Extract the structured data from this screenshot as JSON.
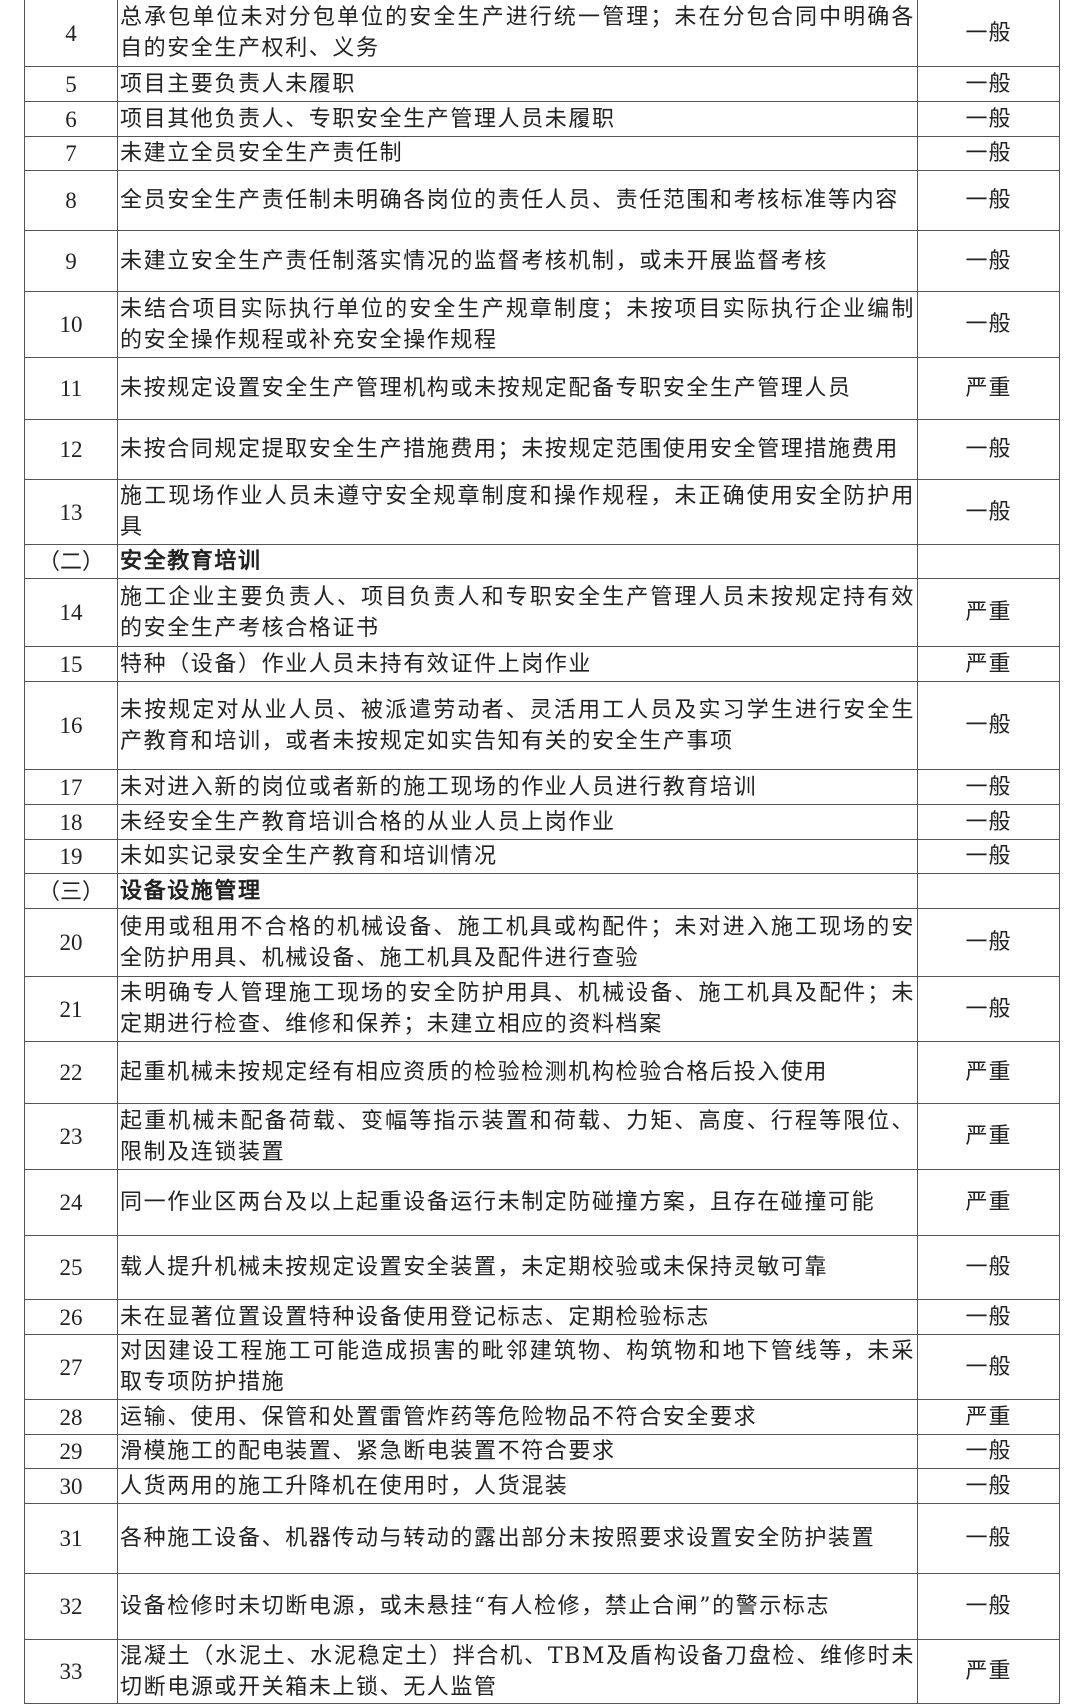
{
  "rows": [
    {
      "no": "4",
      "text": "总承包单位未对分包单位的安全生产进行统一管理；未在分包合同中明确各自的安全生产权利、义务",
      "severity": "一般"
    },
    {
      "no": "5",
      "text": "项目主要负责人未履职",
      "severity": "一般"
    },
    {
      "no": "6",
      "text": "项目其他负责人、专职安全生产管理人员未履职",
      "severity": "一般"
    },
    {
      "no": "7",
      "text": "未建立全员安全生产责任制",
      "severity": "一般"
    },
    {
      "no": "8",
      "text": "全员安全生产责任制未明确各岗位的责任人员、责任范围和考核标准等内容",
      "severity": "一般"
    },
    {
      "no": "9",
      "text": "未建立安全生产责任制落实情况的监督考核机制，或未开展监督考核",
      "severity": "一般"
    },
    {
      "no": "10",
      "text": "未结合项目实际执行单位的安全生产规章制度；未按项目实际执行企业编制的安全操作规程或补充安全操作规程",
      "severity": "一般"
    },
    {
      "no": "11",
      "text": "未按规定设置安全生产管理机构或未按规定配备专职安全生产管理人员",
      "severity": "严重"
    },
    {
      "no": "12",
      "text": "未按合同规定提取安全生产措施费用；未按规定范围使用安全管理措施费用",
      "severity": "一般"
    },
    {
      "no": "13",
      "text": "施工现场作业人员未遵守安全规章制度和操作规程，未正确使用安全防护用具",
      "severity": "一般"
    },
    {
      "section": true,
      "no": "（二）",
      "text": "安全教育培训",
      "severity": ""
    },
    {
      "no": "14",
      "text": "施工企业主要负责人、项目负责人和专职安全生产管理人员未按规定持有效的安全生产考核合格证书",
      "severity": "严重"
    },
    {
      "no": "15",
      "text": "特种（设备）作业人员未持有效证件上岗作业",
      "severity": "严重"
    },
    {
      "no": "16",
      "text": "未按规定对从业人员、被派遣劳动者、灵活用工人员及实习学生进行安全生产教育和培训，或者未按规定如实告知有关的安全生产事项",
      "severity": "一般"
    },
    {
      "no": "17",
      "text": "未对进入新的岗位或者新的施工现场的作业人员进行教育培训",
      "severity": "一般"
    },
    {
      "no": "18",
      "text": "未经安全生产教育培训合格的从业人员上岗作业",
      "severity": "一般"
    },
    {
      "no": "19",
      "text": "未如实记录安全生产教育和培训情况",
      "severity": "一般"
    },
    {
      "section": true,
      "no": "（三）",
      "text": "设备设施管理",
      "severity": ""
    },
    {
      "no": "20",
      "text": "使用或租用不合格的机械设备、施工机具或构配件；未对进入施工现场的安全防护用具、机械设备、施工机具及配件进行查验",
      "severity": "一般"
    },
    {
      "no": "21",
      "text": "未明确专人管理施工现场的安全防护用具、机械设备、施工机具及配件；未定期进行检查、维修和保养；未建立相应的资料档案",
      "severity": "一般"
    },
    {
      "no": "22",
      "text": "起重机械未按规定经有相应资质的检验检测机构检验合格后投入使用",
      "severity": "严重"
    },
    {
      "no": "23",
      "text": "起重机械未配备荷载、变幅等指示装置和荷载、力矩、高度、行程等限位、限制及连锁装置",
      "severity": "严重"
    },
    {
      "no": "24",
      "text": "同一作业区两台及以上起重设备运行未制定防碰撞方案，且存在碰撞可能",
      "severity": "严重"
    },
    {
      "no": "25",
      "text": "载人提升机械未按规定设置安全装置，未定期校验或未保持灵敏可靠",
      "severity": "一般"
    },
    {
      "no": "26",
      "text": "未在显著位置设置特种设备使用登记标志、定期检验标志",
      "severity": "一般"
    },
    {
      "no": "27",
      "text": "对因建设工程施工可能造成损害的毗邻建筑物、构筑物和地下管线等，未采取专项防护措施",
      "severity": "一般"
    },
    {
      "no": "28",
      "text": "运输、使用、保管和处置雷管炸药等危险物品不符合安全要求",
      "severity": "严重"
    },
    {
      "no": "29",
      "text": "滑模施工的配电装置、紧急断电装置不符合要求",
      "severity": "一般"
    },
    {
      "no": "30",
      "text": "人货两用的施工升降机在使用时，人货混装",
      "severity": "一般"
    },
    {
      "no": "31",
      "text": "各种施工设备、机器传动与转动的露出部分未按照要求设置安全防护装置",
      "severity": "一般"
    },
    {
      "no": "32",
      "text": "设备检修时未切断电源，或未悬挂“有人检修，禁止合闸”的警示标志",
      "severity": "一般"
    },
    {
      "no": "33",
      "text": "混凝土（水泥土、水泥稳定土）拌合机、TBM及盾构设备刀盘检、维修时未切断电源或开关箱未上锁、无人监管",
      "severity": "严重"
    }
  ]
}
